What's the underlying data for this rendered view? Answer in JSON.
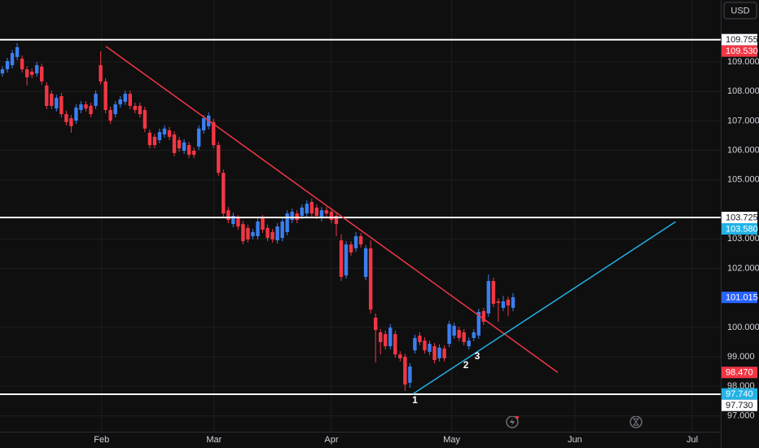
{
  "chart_data": {
    "type": "candlestick",
    "currency": "USD",
    "up_color": "#3b7ff0",
    "down_color": "#f23645",
    "grid": true,
    "categories": [
      null,
      null,
      null,
      null,
      null,
      null,
      null,
      null,
      null,
      null,
      null,
      null,
      null,
      null,
      null,
      null,
      null,
      null,
      null,
      null,
      null,
      null,
      null,
      null,
      null,
      null,
      null,
      null,
      null,
      null,
      null,
      null,
      null,
      null,
      null,
      null,
      null,
      null,
      null,
      null,
      null,
      null,
      null,
      null,
      null,
      null,
      null,
      null,
      null,
      null,
      null,
      null,
      null,
      null,
      null,
      null,
      null,
      null,
      null,
      null,
      null,
      null,
      null,
      null,
      null,
      null,
      null,
      null,
      null,
      null,
      null,
      null,
      null,
      null,
      null,
      null,
      null,
      null,
      null,
      null,
      null,
      null,
      null,
      null,
      null,
      null,
      null,
      null,
      null,
      null,
      null,
      null,
      null,
      null,
      null,
      null,
      null,
      null,
      null,
      null,
      null,
      null,
      null,
      null,
      null
    ],
    "open": [
      108.61,
      108.75,
      108.89,
      109.17,
      109.11,
      108.75,
      108.67,
      108.61,
      108.84,
      108.2,
      107.92,
      107.42,
      107.84,
      107.23,
      107.09,
      107.01,
      107.37,
      107.56,
      107.51,
      107.51,
      108.89,
      108.34,
      107.37,
      107.23,
      107.56,
      107.65,
      107.92,
      107.51,
      107.51,
      107.37,
      106.6,
      106.46,
      106.35,
      106.54,
      106.68,
      106.54,
      106.35,
      105.99,
      106.18,
      105.99,
      106.13,
      106.68,
      106.82,
      106.96,
      106.18,
      105.24,
      103.97,
      103.5,
      103.7,
      103.5,
      103.37,
      103.09,
      103.09,
      103.7,
      103.37,
      103.23,
      102.95,
      103.03,
      103.23,
      103.64,
      103.86,
      103.78,
      103.86,
      104.25,
      104.06,
      103.7,
      103.97,
      103.92,
      103.78,
      102.95,
      101.76,
      102.81,
      102.68,
      103.09,
      101.71,
      102.68,
      100.33,
      99.83,
      99.77,
      99.36,
      99.77,
      99.08,
      99.0,
      98.12,
      99.22,
      99.72,
      99.55,
      99.17,
      99.36,
      98.95,
      99.28,
      99.44,
      99.72,
      99.91,
      99.83,
      99.36,
      99.64,
      99.72,
      100.55,
      100.47,
      101.57,
      100.88,
      100.66,
      100.94,
      100.66
    ],
    "high": [
      108.86,
      109.14,
      109.41,
      109.64,
      109.22,
      108.86,
      108.78,
      109.0,
      108.94,
      108.31,
      108.03,
      107.89,
      107.95,
      107.34,
      107.2,
      107.56,
      107.67,
      107.67,
      107.62,
      108.03,
      109.36,
      108.45,
      107.48,
      107.67,
      107.84,
      108.03,
      108.03,
      107.62,
      107.62,
      107.48,
      106.71,
      106.57,
      106.74,
      106.85,
      106.79,
      106.65,
      106.46,
      106.38,
      106.29,
      106.1,
      106.85,
      107.2,
      107.29,
      107.07,
      106.29,
      105.35,
      104.08,
      103.89,
      103.81,
      103.61,
      103.48,
      103.34,
      103.7,
      103.81,
      103.48,
      103.34,
      103.53,
      103.7,
      103.97,
      104.03,
      103.97,
      104.17,
      104.31,
      104.36,
      104.17,
      104.08,
      104.08,
      104.03,
      103.89,
      103.15,
      102.92,
      102.92,
      103.23,
      103.2,
      102.79,
      102.95,
      100.47,
      99.94,
      99.89,
      100.11,
      99.89,
      99.19,
      99.11,
      98.78,
      99.75,
      99.83,
      99.66,
      99.55,
      99.47,
      99.42,
      99.39,
      100.22,
      100.16,
      100.02,
      99.94,
      99.66,
      99.94,
      100.63,
      100.66,
      101.79,
      101.68,
      100.99,
      101.07,
      101.04,
      101.16
    ],
    "low": [
      108.5,
      108.64,
      108.78,
      109.06,
      108.64,
      108.2,
      108.45,
      108.5,
      108.23,
      107.4,
      107.4,
      107.32,
      107.12,
      106.85,
      106.6,
      106.9,
      107.26,
      107.32,
      107.12,
      107.4,
      108.23,
      107.26,
      106.9,
      107.12,
      107.45,
      107.54,
      107.4,
      107.26,
      107.12,
      106.62,
      106.07,
      106.07,
      106.24,
      106.43,
      106.35,
      105.8,
      105.96,
      105.88,
      105.74,
      105.74,
      106.02,
      106.57,
      106.71,
      106.07,
      105.13,
      103.75,
      103.53,
      103.39,
      103.31,
      102.81,
      102.87,
      102.98,
      102.98,
      103.2,
      102.92,
      102.87,
      102.84,
      102.92,
      103.12,
      103.53,
      103.53,
      103.67,
      103.75,
      103.75,
      103.67,
      103.59,
      103.75,
      103.53,
      103.09,
      101.57,
      101.65,
      102.43,
      102.56,
      102.7,
      101.6,
      100.47,
      98.81,
      99.08,
      99.25,
      99.25,
      98.97,
      98.84,
      97.84,
      97.95,
      99.11,
      99.39,
      99.11,
      99.06,
      98.78,
      98.84,
      98.84,
      99.33,
      99.61,
      99.53,
      99.39,
      99.25,
      99.53,
      99.61,
      100.08,
      100.36,
      100.69,
      100.19,
      100.55,
      100.38,
      100.55
    ],
    "close": [
      108.75,
      109.03,
      109.3,
      109.5,
      108.75,
      108.48,
      108.56,
      108.89,
      108.34,
      107.51,
      107.51,
      107.78,
      107.23,
      106.96,
      106.82,
      107.45,
      107.56,
      107.42,
      107.23,
      107.92,
      108.34,
      107.37,
      107.01,
      107.56,
      107.73,
      107.92,
      107.51,
      107.37,
      107.23,
      106.74,
      106.18,
      106.18,
      106.62,
      106.74,
      106.46,
      105.91,
      106.07,
      106.27,
      105.85,
      105.85,
      106.74,
      107.09,
      107.18,
      106.18,
      105.24,
      103.86,
      103.64,
      103.78,
      103.42,
      102.92,
      102.98,
      103.23,
      103.59,
      103.31,
      103.03,
      102.98,
      103.42,
      103.59,
      103.86,
      103.92,
      103.64,
      104.06,
      104.19,
      103.86,
      103.78,
      103.97,
      103.86,
      103.64,
      103.5,
      101.71,
      102.81,
      102.54,
      103.09,
      102.81,
      102.68,
      100.6,
      99.91,
      99.5,
      99.36,
      99.99,
      99.08,
      98.95,
      98.06,
      98.67,
      99.64,
      99.5,
      99.22,
      99.44,
      98.89,
      99.31,
      98.95,
      100.11,
      100.05,
      99.64,
      99.5,
      99.55,
      99.83,
      100.52,
      100.19,
      101.57,
      100.8,
      100.83,
      100.88,
      100.74,
      101.02
    ],
    "xlim": [
      -0.5,
      146.3
    ],
    "ylim": [
      96.46,
      111.1
    ],
    "xticks": [
      {
        "value": 20.2,
        "label": "Feb"
      },
      {
        "value": 43.1,
        "label": "Mar"
      },
      {
        "value": 67.0,
        "label": "Apr"
      },
      {
        "value": 91.5,
        "label": "May"
      },
      {
        "value": 116.6,
        "label": "Jun"
      },
      {
        "value": 140.5,
        "label": "Jul"
      }
    ],
    "yticks": [
      {
        "value": 97,
        "label": "97.000"
      },
      {
        "value": 98,
        "label": "98.000"
      },
      {
        "value": 99,
        "label": "99.000"
      },
      {
        "value": 100,
        "label": "100.000"
      },
      {
        "value": 102,
        "label": "102.000"
      },
      {
        "value": 103,
        "label": "103.000"
      },
      {
        "value": 105,
        "label": "105.000"
      },
      {
        "value": 106,
        "label": "106.000"
      },
      {
        "value": 107,
        "label": "107.000"
      },
      {
        "value": 108,
        "label": "108.000"
      },
      {
        "value": 109,
        "label": "109.000"
      }
    ],
    "hlines": [
      {
        "price": 109.755,
        "color": "#ffffff"
      },
      {
        "price": 103.725,
        "color": "#ffffff"
      },
      {
        "price": 97.73,
        "label": "97.730",
        "color": "#ffffff"
      }
    ],
    "trendlines": [
      {
        "color": "#f23645",
        "x": [
          21.06,
          113.1
        ],
        "y": [
          109.53,
          98.47
        ],
        "y_labels": [
          "109.530",
          "98.470"
        ]
      },
      {
        "color": "#22b3e6",
        "x": [
          83.6,
          137.1
        ],
        "y": [
          97.74,
          103.58
        ],
        "y_labels": [
          "97.740",
          "103.580"
        ]
      }
    ],
    "last_price": 101.015,
    "last_price_color": "#2962ff",
    "annotations": [
      {
        "text": "1",
        "x": 84,
        "y": 97.51
      },
      {
        "text": "2",
        "x": 94.4,
        "y": 98.7
      },
      {
        "text": "3",
        "x": 96.7,
        "y": 99.0
      }
    ]
  }
}
